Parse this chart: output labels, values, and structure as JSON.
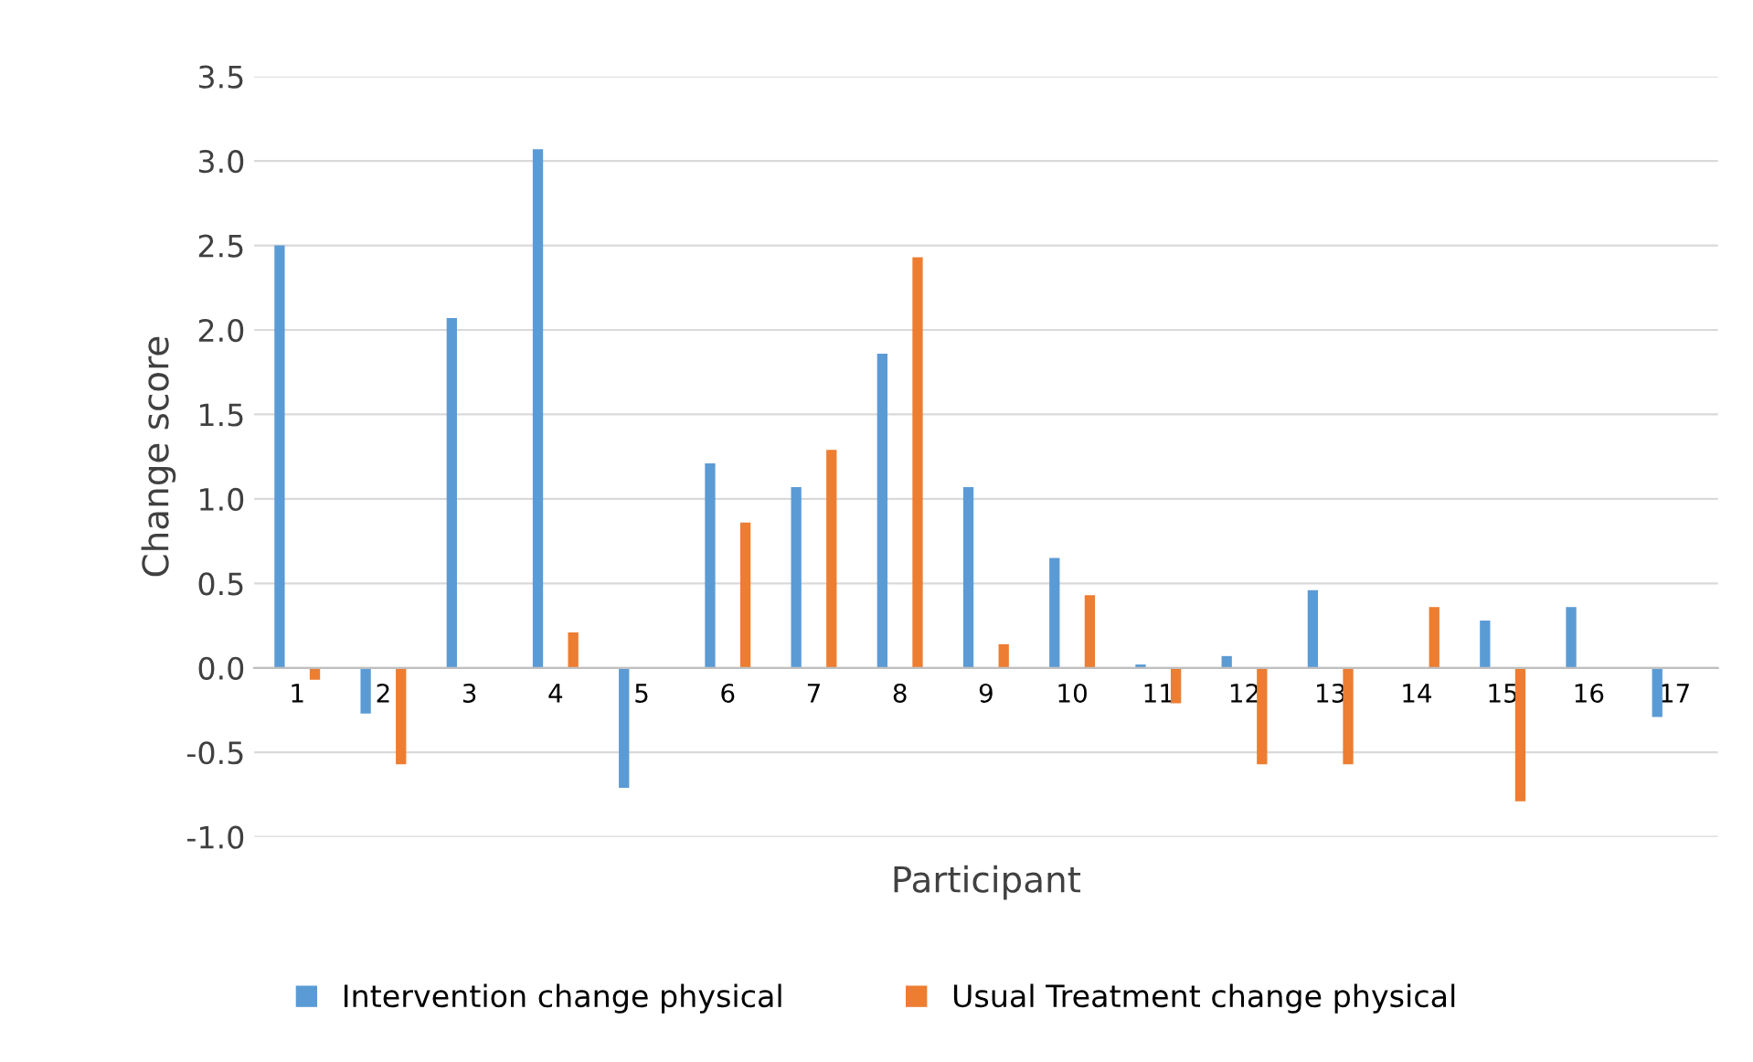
{
  "chart_data": {
    "type": "bar",
    "xlabel": "Participant",
    "ylabel": "Change score",
    "categories": [
      "1",
      "2",
      "3",
      "4",
      "5",
      "6",
      "7",
      "8",
      "9",
      "10",
      "11",
      "12",
      "13",
      "14",
      "15",
      "16",
      "17"
    ],
    "series": [
      {
        "name": "Intervention change physical",
        "color": "#5b9bd5",
        "values": [
          2.5,
          -0.27,
          2.07,
          3.07,
          -0.71,
          1.21,
          1.07,
          1.86,
          1.07,
          0.65,
          0.02,
          0.07,
          0.46,
          0,
          0.28,
          0.36,
          -0.29
        ]
      },
      {
        "name": "Usual Treatment change physical",
        "color": "#ed7d31",
        "values": [
          -0.07,
          -0.57,
          0,
          0.21,
          0,
          0.86,
          1.29,
          2.43,
          0.14,
          0.43,
          -0.21,
          -0.57,
          -0.57,
          0.36,
          -0.79,
          0,
          0
        ]
      }
    ],
    "ylim": [
      -1.0,
      3.5
    ],
    "yticks": [
      {
        "value": -1,
        "label": "-1.0"
      },
      -0.5,
      {
        "value": 0,
        "label": "0.0"
      },
      0.5,
      {
        "value": 1,
        "label": "1.0"
      },
      1.5,
      {
        "value": 2,
        "label": "2.0"
      },
      2.5,
      {
        "value": 3,
        "label": "3.0"
      },
      3.5
    ],
    "grid": "y",
    "legend": "bottom"
  }
}
